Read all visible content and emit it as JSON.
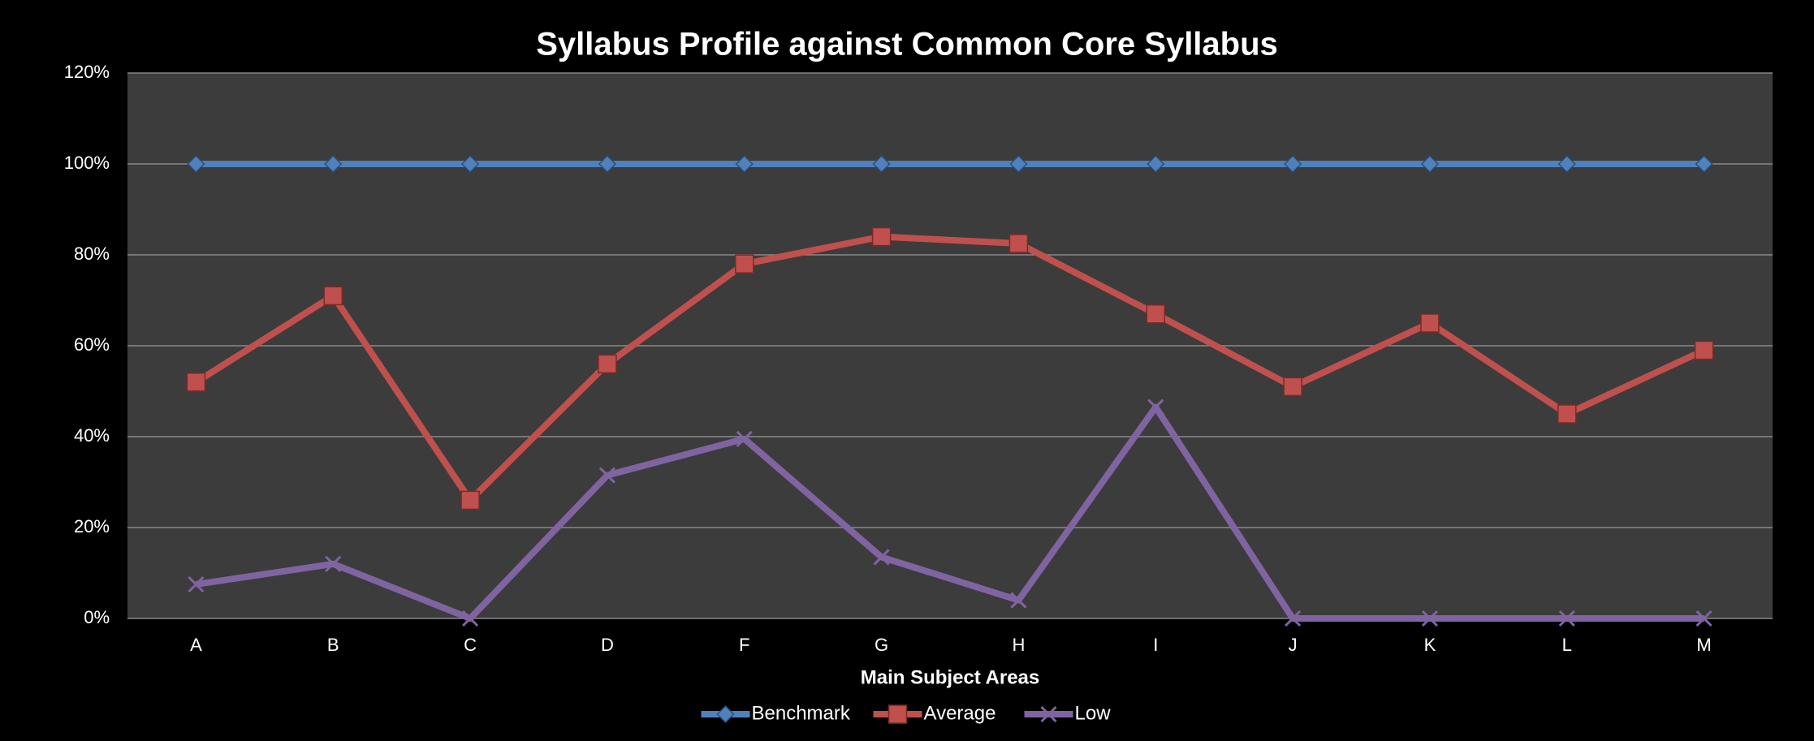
{
  "chart_data": {
    "type": "line",
    "title": "Syllabus Profile against Common Core Syllabus",
    "x_label": "Main Subject Areas",
    "categories": [
      "A",
      "B",
      "C",
      "D",
      "F",
      "G",
      "H",
      "I",
      "J",
      "K",
      "L",
      "M"
    ],
    "series": [
      {
        "name": "Benchmark",
        "color": "#4f81bd",
        "marker": "diamond",
        "values": [
          100,
          100,
          100,
          100,
          100,
          100,
          100,
          100,
          100,
          100,
          100,
          100
        ]
      },
      {
        "name": "Average",
        "color": "#c0504d",
        "marker": "square",
        "values": [
          52,
          71,
          26,
          56,
          78,
          84,
          82.5,
          67,
          51,
          65,
          45,
          59
        ]
      },
      {
        "name": "Low",
        "color": "#8064a2",
        "marker": "x",
        "values": [
          7.5,
          12,
          0,
          31.5,
          39.5,
          13.5,
          4,
          46.5,
          0,
          0,
          0,
          0
        ]
      }
    ],
    "ylim": [
      0,
      120
    ],
    "yticks": [
      {
        "value": 0,
        "label": "0%"
      },
      {
        "value": 20,
        "label": "20%"
      },
      {
        "value": 40,
        "label": "40%"
      },
      {
        "value": 60,
        "label": "60%"
      },
      {
        "value": 80,
        "label": "80%"
      },
      {
        "value": 100,
        "label": "100%"
      },
      {
        "value": 120,
        "label": "120%"
      }
    ],
    "grid": true,
    "legend": "bottom"
  }
}
